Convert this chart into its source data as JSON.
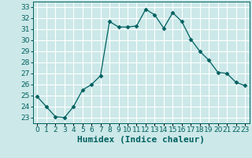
{
  "x": [
    0,
    1,
    2,
    3,
    4,
    5,
    6,
    7,
    8,
    9,
    10,
    11,
    12,
    13,
    14,
    15,
    16,
    17,
    18,
    19,
    20,
    21,
    22,
    23
  ],
  "y": [
    24.9,
    24.0,
    23.1,
    23.0,
    24.0,
    25.5,
    26.0,
    26.8,
    31.7,
    31.2,
    31.2,
    31.3,
    32.8,
    32.3,
    31.1,
    32.5,
    31.7,
    30.1,
    29.0,
    28.2,
    27.1,
    27.0,
    26.2,
    25.9
  ],
  "line_color": "#006060",
  "marker": "D",
  "marker_size": 2.5,
  "bg_color": "#cce8e8",
  "grid_color": "#ffffff",
  "xlabel": "Humidex (Indice chaleur)",
  "ylim": [
    22.5,
    33.5
  ],
  "xlim": [
    -0.5,
    23.5
  ],
  "yticks": [
    23,
    24,
    25,
    26,
    27,
    28,
    29,
    30,
    31,
    32,
    33
  ],
  "xtick_labels": [
    "0",
    "1",
    "2",
    "3",
    "4",
    "5",
    "6",
    "7",
    "8",
    "9",
    "10",
    "11",
    "12",
    "13",
    "14",
    "15",
    "16",
    "17",
    "18",
    "19",
    "20",
    "21",
    "22",
    "23"
  ],
  "tick_fontsize": 6.5,
  "xlabel_fontsize": 8
}
